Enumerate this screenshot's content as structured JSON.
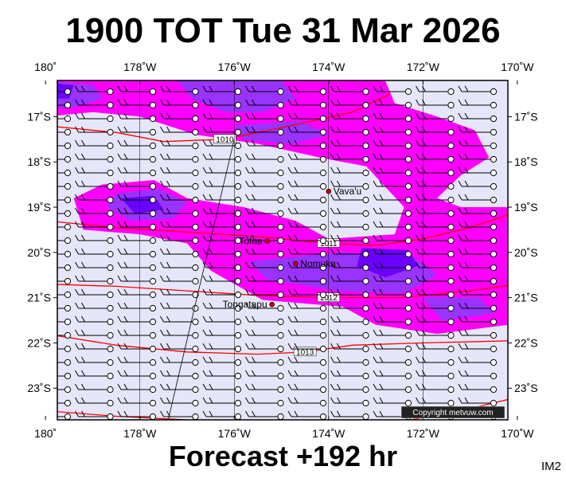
{
  "title": "1900 TOT Tue 31 Mar 2026",
  "footer": "Forecast +192 hr",
  "image_code": "IM2",
  "copyright": "Copyright metvuw.com",
  "colors": {
    "background_field": "#e6e6fa",
    "magenta": "#ff00ff",
    "purple": "#9933ff",
    "deep_purple": "#6a00ff",
    "isobar": "#ff0000",
    "place_marker": "#cc0000"
  },
  "map": {
    "lon_range": [
      180.25,
      189.8
    ],
    "lat_range": [
      -23.7,
      -16.2
    ],
    "lon_ticks": [
      {
        "lon": 180,
        "label": "180˚"
      },
      {
        "lon": 182,
        "label": "178˚W"
      },
      {
        "lon": 184,
        "label": "176˚W"
      },
      {
        "lon": 186,
        "label": "174˚W"
      },
      {
        "lon": 188,
        "label": "172˚W"
      },
      {
        "lon": 190,
        "label": "170˚W"
      }
    ],
    "lat_ticks": [
      {
        "lat": -17,
        "label": "17˚S"
      },
      {
        "lat": -18,
        "label": "18˚S"
      },
      {
        "lat": -19,
        "label": "19˚S"
      },
      {
        "lat": -20,
        "label": "20˚S"
      },
      {
        "lat": -21,
        "label": "21˚S"
      },
      {
        "lat": -22,
        "label": "22˚S"
      },
      {
        "lat": -23,
        "label": "23˚S"
      }
    ],
    "places": [
      {
        "name": "Vava'u",
        "lon": 186.0,
        "lat": -18.65
      },
      {
        "name": "Tofua",
        "lon": 184.7,
        "lat": -19.75
      },
      {
        "name": "Nomuka",
        "lon": 185.3,
        "lat": -20.25
      },
      {
        "name": "Tongatapu",
        "lon": 184.8,
        "lat": -21.15
      }
    ],
    "isobars": [
      {
        "label": "1010",
        "points": [
          [
            180,
            -17.2
          ],
          [
            181.5,
            -17.35
          ],
          [
            182.5,
            -17.55
          ],
          [
            183.8,
            -17.5
          ],
          [
            185.2,
            -17.2
          ],
          [
            186.5,
            -16.9
          ],
          [
            187.3,
            -16.5
          ]
        ]
      },
      {
        "label": "1011",
        "points": [
          [
            180,
            -19.3
          ],
          [
            181.5,
            -19.45
          ],
          [
            183,
            -19.55
          ],
          [
            184.5,
            -19.65
          ],
          [
            186,
            -19.8
          ],
          [
            187,
            -19.85
          ],
          [
            188,
            -19.7
          ],
          [
            189,
            -19.45
          ],
          [
            190,
            -19.1
          ]
        ]
      },
      {
        "label": "1012",
        "points": [
          [
            180,
            -20.7
          ],
          [
            181.5,
            -20.75
          ],
          [
            183,
            -20.85
          ],
          [
            184.5,
            -20.95
          ],
          [
            186,
            -21.0
          ],
          [
            187.5,
            -21.0
          ],
          [
            189,
            -20.85
          ],
          [
            190,
            -20.7
          ]
        ]
      },
      {
        "label": "1013",
        "points": [
          [
            180,
            -21.8
          ],
          [
            181.5,
            -22.05
          ],
          [
            183,
            -22.2
          ],
          [
            184.5,
            -22.25
          ],
          [
            185.5,
            -22.2
          ],
          [
            186.5,
            -22.05
          ],
          [
            188,
            -22.0
          ],
          [
            190,
            -21.95
          ]
        ]
      },
      {
        "label": "1014",
        "points": [
          [
            180,
            -23.5
          ],
          [
            181.5,
            -23.62
          ],
          [
            183,
            -23.7
          ],
          [
            184.5,
            -23.78
          ],
          [
            186,
            -23.85
          ],
          [
            187.5,
            -23.75
          ],
          [
            189,
            -23.45
          ],
          [
            190,
            -23.2
          ]
        ]
      }
    ],
    "precip_regions": [
      {
        "level": "magenta",
        "points": [
          [
            180,
            -16.2
          ],
          [
            187.2,
            -16.2
          ],
          [
            187.4,
            -16.7
          ],
          [
            188.3,
            -17.0
          ],
          [
            189.1,
            -17.3
          ],
          [
            189.4,
            -17.9
          ],
          [
            188.8,
            -18.3
          ],
          [
            188.3,
            -18.8
          ],
          [
            188.8,
            -19.0
          ],
          [
            189.8,
            -19.0
          ],
          [
            189.8,
            -21.6
          ],
          [
            188.3,
            -21.8
          ],
          [
            187.0,
            -21.6
          ],
          [
            186.3,
            -21.2
          ],
          [
            184.6,
            -21.05
          ],
          [
            183.5,
            -20.4
          ],
          [
            183.0,
            -19.8
          ],
          [
            182.0,
            -19.6
          ],
          [
            180.8,
            -19.5
          ],
          [
            180.6,
            -18.8
          ],
          [
            181.2,
            -18.5
          ],
          [
            182.3,
            -18.4
          ],
          [
            183.0,
            -18.8
          ],
          [
            184.2,
            -19.0
          ],
          [
            185.3,
            -19.3
          ],
          [
            186.0,
            -19.7
          ],
          [
            187.4,
            -19.6
          ],
          [
            187.6,
            -19.0
          ],
          [
            186.8,
            -18.1
          ],
          [
            185.8,
            -17.9
          ],
          [
            184.5,
            -17.6
          ],
          [
            183.2,
            -17.4
          ],
          [
            182.0,
            -17.0
          ],
          [
            181.0,
            -16.9
          ],
          [
            180,
            -17.0
          ]
        ]
      },
      {
        "level": "purple",
        "points": [
          [
            180,
            -16.2
          ],
          [
            181.0,
            -16.3
          ],
          [
            181.2,
            -16.6
          ],
          [
            180.6,
            -16.8
          ],
          [
            180,
            -16.8
          ]
        ]
      },
      {
        "level": "purple",
        "points": [
          [
            181.5,
            -18.7
          ],
          [
            182.4,
            -18.6
          ],
          [
            183.0,
            -18.9
          ],
          [
            182.7,
            -19.25
          ],
          [
            181.8,
            -19.3
          ],
          [
            181.3,
            -19.0
          ]
        ]
      },
      {
        "level": "purple",
        "points": [
          [
            182.8,
            -16.2
          ],
          [
            185.0,
            -16.2
          ],
          [
            185.3,
            -16.6
          ],
          [
            184.6,
            -16.9
          ],
          [
            183.8,
            -16.9
          ],
          [
            183.1,
            -16.6
          ]
        ]
      },
      {
        "level": "purple",
        "points": [
          [
            184.0,
            -17.2
          ],
          [
            185.4,
            -17.1
          ],
          [
            186.0,
            -17.4
          ],
          [
            185.2,
            -17.6
          ],
          [
            184.2,
            -17.5
          ]
        ]
      },
      {
        "level": "purple",
        "points": [
          [
            184.3,
            -20.2
          ],
          [
            186.3,
            -20.0
          ],
          [
            187.8,
            -20.1
          ],
          [
            188.3,
            -20.5
          ],
          [
            187.6,
            -20.9
          ],
          [
            186.2,
            -20.85
          ],
          [
            184.7,
            -20.6
          ]
        ]
      },
      {
        "level": "purple",
        "points": [
          [
            188.0,
            -21.0
          ],
          [
            189.2,
            -21.0
          ],
          [
            189.5,
            -21.35
          ],
          [
            188.4,
            -21.5
          ]
        ]
      },
      {
        "level": "deep_purple",
        "points": [
          [
            186.7,
            -19.9
          ],
          [
            187.7,
            -19.95
          ],
          [
            187.9,
            -20.3
          ],
          [
            187.2,
            -20.55
          ],
          [
            186.6,
            -20.3
          ]
        ]
      },
      {
        "level": "deep_purple",
        "points": [
          [
            181.6,
            -18.8
          ],
          [
            182.3,
            -18.75
          ],
          [
            182.5,
            -19.05
          ],
          [
            181.9,
            -19.15
          ]
        ]
      },
      {
        "level": "deep_purple",
        "points": [
          [
            180,
            -16.25
          ],
          [
            180.6,
            -16.3
          ],
          [
            180.5,
            -16.6
          ],
          [
            180,
            -16.6
          ]
        ]
      }
    ]
  }
}
